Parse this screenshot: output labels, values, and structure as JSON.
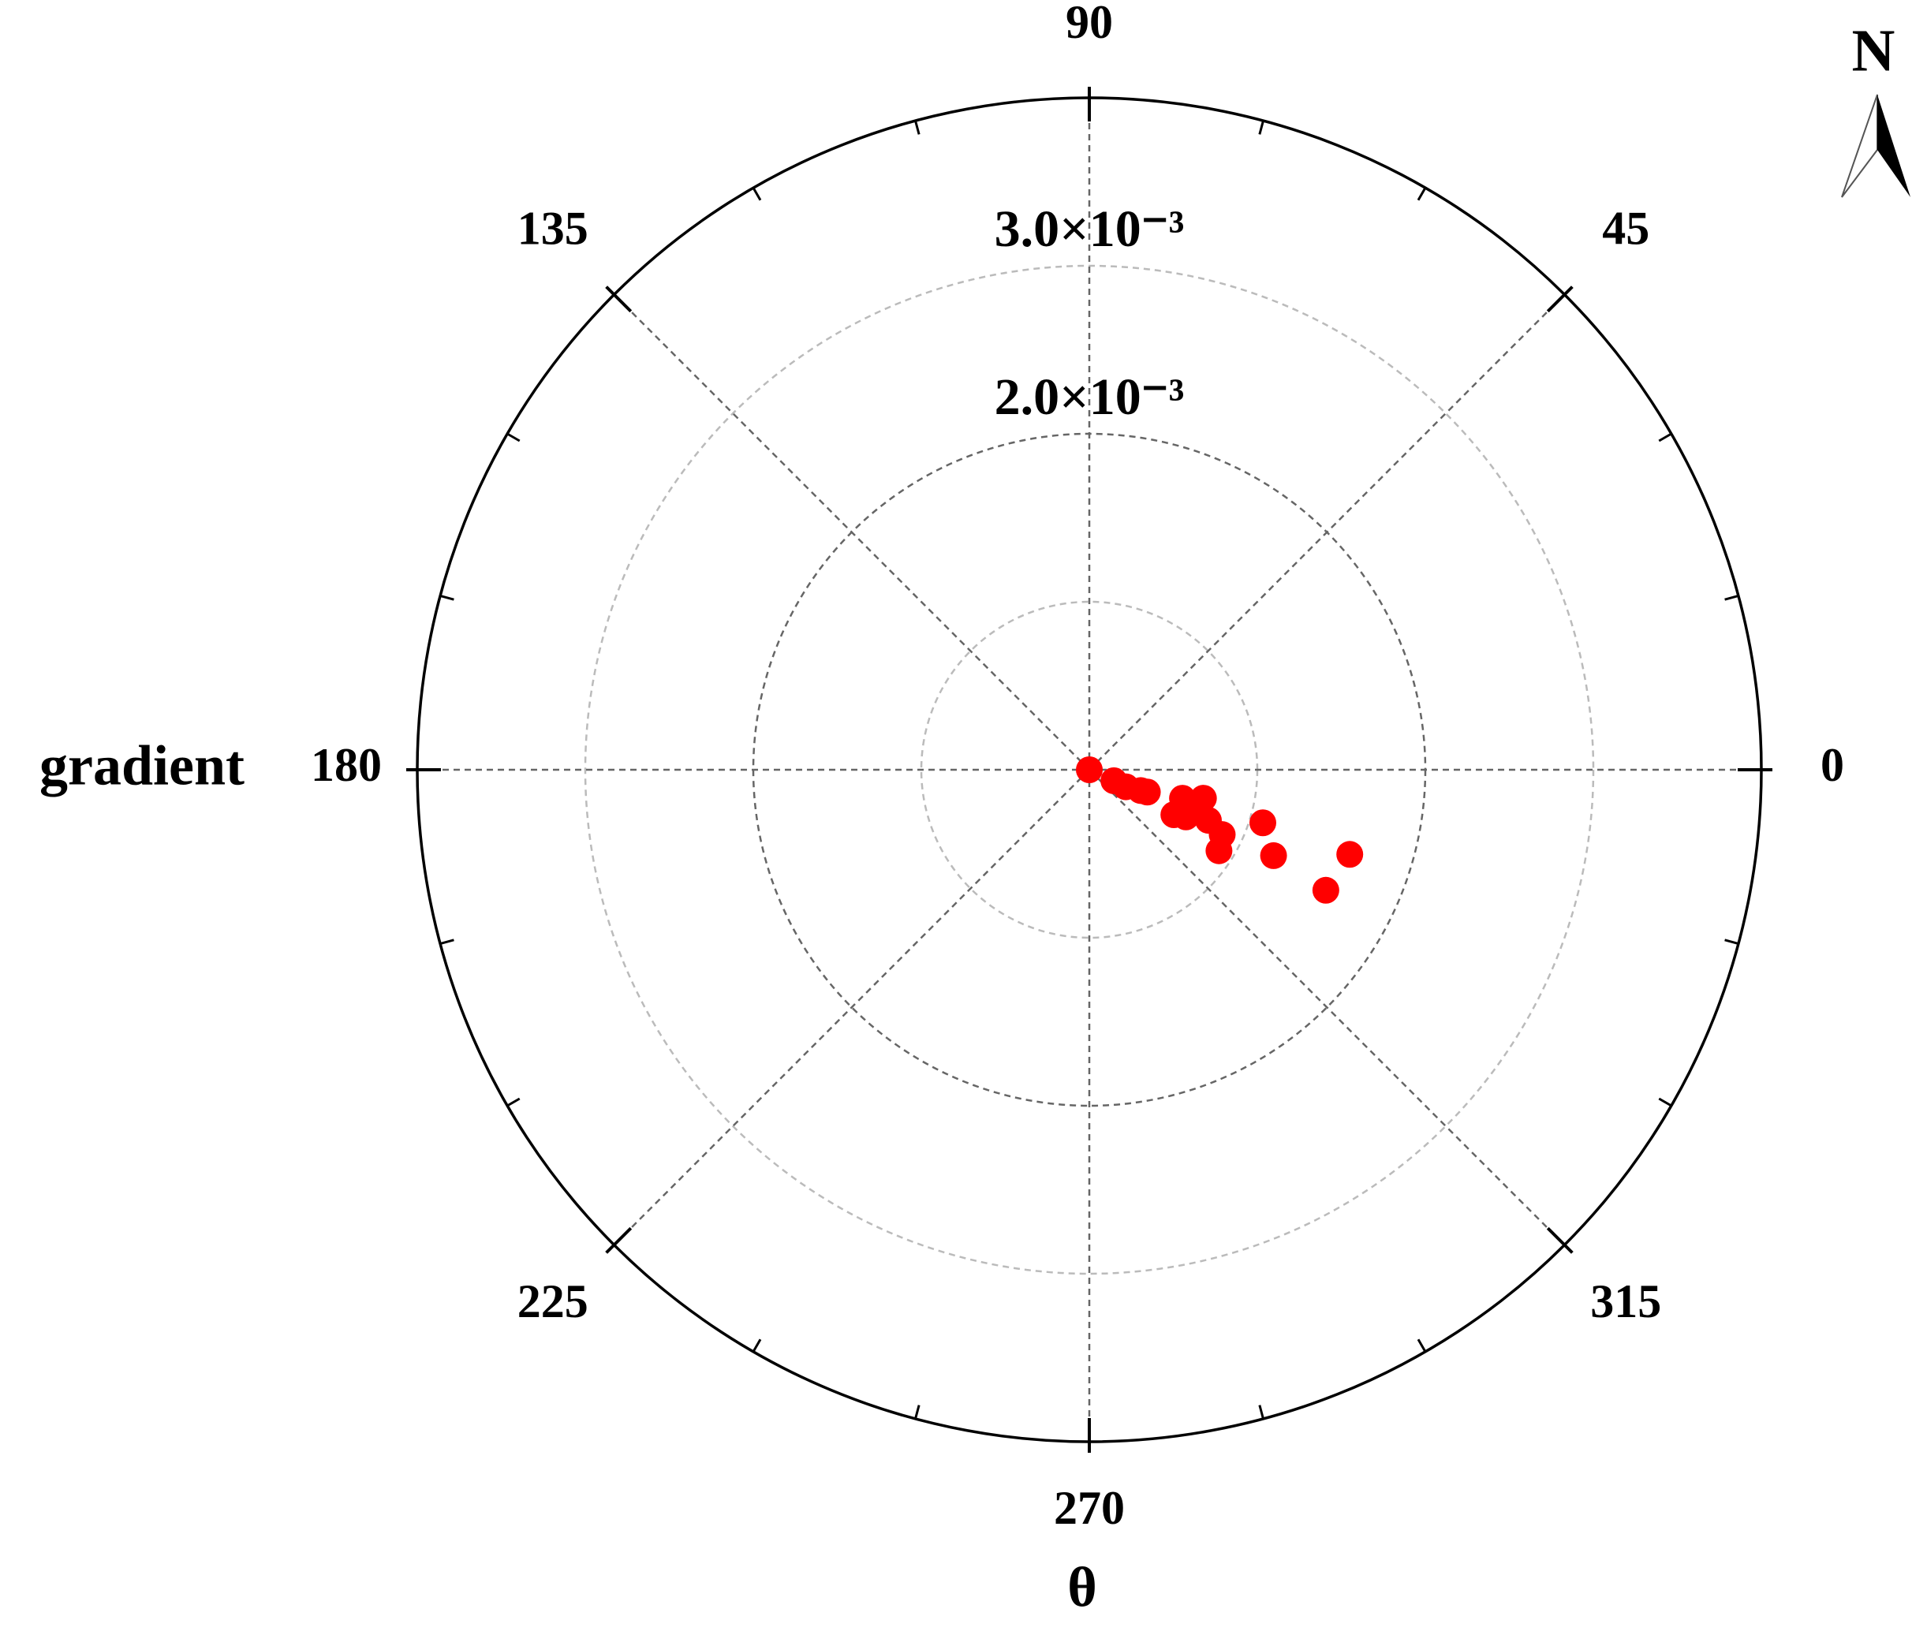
{
  "chart_data": {
    "type": "polar-scatter",
    "r_label": "gradient",
    "theta_label": "θ",
    "north": "N",
    "theta": [
      350,
      336,
      335,
      338,
      339,
      343,
      346,
      332,
      334,
      340,
      337,
      334,
      328,
      343,
      335,
      342,
      333
    ],
    "r": [
      0,
      0.00016,
      0.00024,
      0.00033,
      0.00037,
      0.00058,
      0.0007,
      0.00057,
      0.00064,
      0.00067,
      0.00077,
      0.00088,
      0.00091,
      0.00108,
      0.00121,
      0.00163,
      0.00158
    ],
    "color": "#ff0000",
    "rlim": [
      0,
      0.004
    ],
    "rticks": [
      {
        "value": 0.001,
        "label": null
      },
      {
        "value": 0.002,
        "label": "2.0×10⁻³"
      },
      {
        "value": 0.003,
        "label": "3.0×10⁻³"
      }
    ],
    "thetaticks": [
      0,
      45,
      90,
      135,
      180,
      225,
      270,
      315
    ],
    "grid": true
  }
}
